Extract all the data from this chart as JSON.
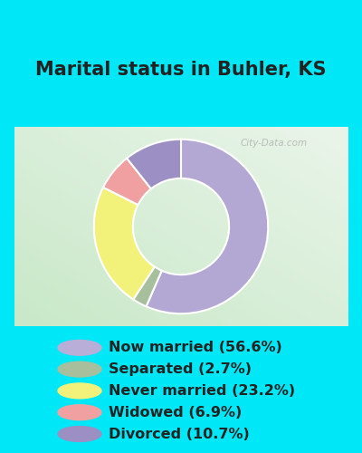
{
  "title": "Marital status in Buhler, KS",
  "categories": [
    "Now married",
    "Separated",
    "Never married",
    "Widowed",
    "Divorced"
  ],
  "percentages": [
    56.6,
    2.7,
    23.2,
    6.9,
    10.7
  ],
  "colors": [
    "#b3a8d4",
    "#a8bf9e",
    "#f2f27a",
    "#f0a0a0",
    "#9b8fc4"
  ],
  "legend_colors": [
    "#b8aed8",
    "#a8bf9e",
    "#f2f27a",
    "#f0a0a0",
    "#9b8fc4"
  ],
  "bg_cyan": "#00e8f8",
  "bg_chart_light": "#eaf5ea",
  "bg_chart_dark": "#c8e8c8",
  "watermark": "City-Data.com",
  "title_fontsize": 15,
  "legend_fontsize": 11.5,
  "title_color": "#222222",
  "legend_text_color": "#222222"
}
